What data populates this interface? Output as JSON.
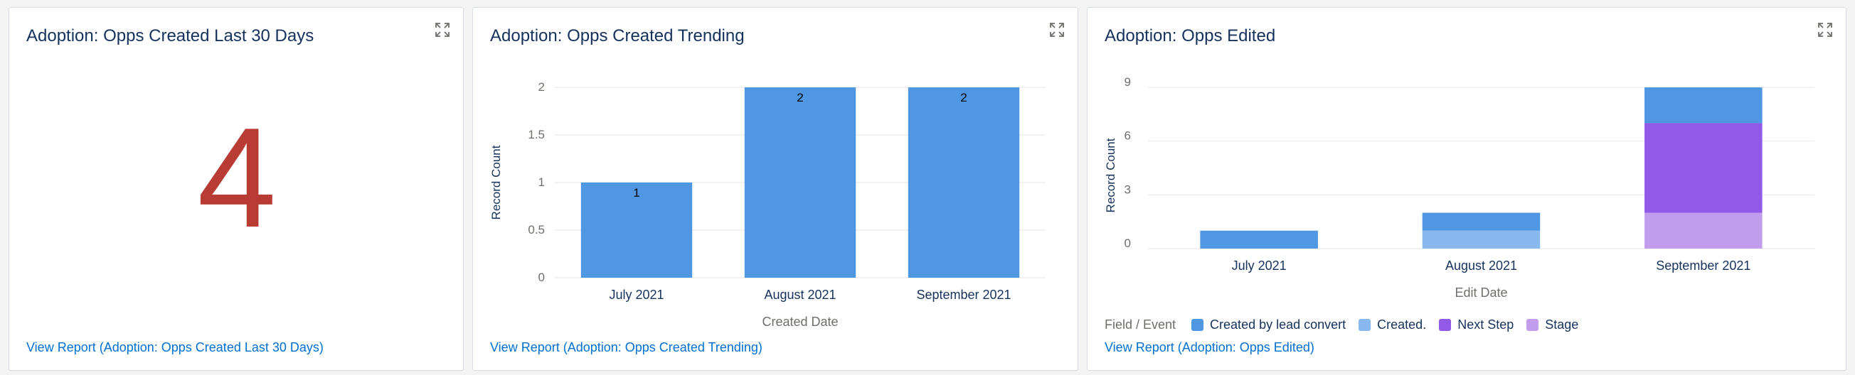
{
  "cards": [
    {
      "title": "Adoption: Opps Created Last 30 Days",
      "metric": "4",
      "view_report": "View Report (Adoption: Opps Created Last 30 Days)"
    },
    {
      "title": "Adoption: Opps Created Trending",
      "view_report": "View Report (Adoption: Opps Created Trending)"
    },
    {
      "title": "Adoption: Opps Edited",
      "legend_title": "Field / Event",
      "view_report": "View Report (Adoption: Opps Edited)"
    }
  ],
  "icons": {
    "expand": "expand-icon"
  },
  "colors": {
    "metric": "#b83c34",
    "link": "#0070d2",
    "title": "#16325c",
    "bar": "#4f96e3"
  },
  "chart_data": [
    {
      "type": "bar",
      "title": "Adoption: Opps Created Trending",
      "xlabel": "Created Date",
      "ylabel": "Record Count",
      "categories": [
        "July 2021",
        "August 2021",
        "September 2021"
      ],
      "values": [
        1,
        2,
        2
      ],
      "data_labels": [
        "1",
        "2",
        "2"
      ],
      "ylim": [
        0,
        2
      ],
      "yticks": [
        "0",
        "0.5",
        "1",
        "1.5",
        "2"
      ],
      "grid": true
    },
    {
      "type": "bar",
      "stacked": true,
      "title": "Adoption: Opps Edited",
      "xlabel": "Edit Date",
      "ylabel": "Record Count",
      "categories": [
        "July 2021",
        "August 2021",
        "September 2021"
      ],
      "yticks": [
        "0",
        "3",
        "6",
        "9"
      ],
      "ylim": [
        0,
        9
      ],
      "grid": true,
      "legend_title": "Field / Event",
      "series": [
        {
          "name": "Stage",
          "color": "#c29ded",
          "values": [
            0,
            0,
            2
          ]
        },
        {
          "name": "Next Step",
          "color": "#9159e6",
          "values": [
            0,
            0,
            5
          ]
        },
        {
          "name": "Created.",
          "color": "#88b8ee",
          "values": [
            0,
            1,
            0
          ]
        },
        {
          "name": "Created by lead convert",
          "color": "#4f96e3",
          "values": [
            1,
            1,
            2
          ]
        }
      ],
      "legend_order": [
        "Created by lead convert",
        "Created.",
        "Next Step",
        "Stage"
      ]
    }
  ]
}
